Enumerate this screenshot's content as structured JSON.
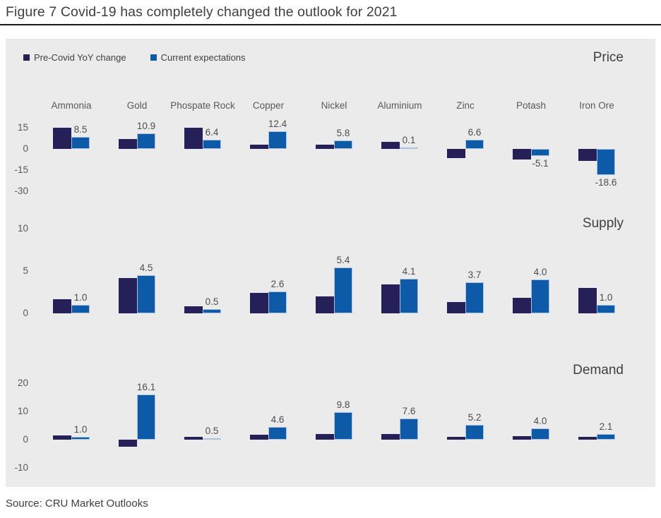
{
  "figure": {
    "title": "Figure 7 Covid-19 has completely changed the outlook for 2021",
    "source": "Source: CRU Market Outlooks"
  },
  "colors": {
    "pre_covid": "#252057",
    "current": "#0d5ba8",
    "current_border": "#a9c3df",
    "chart_background": "#ebebeb",
    "text_gray": "#595959"
  },
  "legend": {
    "items": [
      {
        "label": "Pre-Covid YoY change",
        "color": "#252057"
      },
      {
        "label": "Current expectations",
        "color": "#0d5ba8"
      }
    ]
  },
  "chart_data": {
    "type": "bar",
    "categories": [
      "Ammonia",
      "Gold",
      "Phospate Rock",
      "Copper",
      "Nickel",
      "Aluminium",
      "Zinc",
      "Potash",
      "Iron Ore"
    ],
    "legend_position": "top-left",
    "grid": false,
    "panels": [
      {
        "title": "Price",
        "yticks": [
          15,
          0,
          -15,
          -30
        ],
        "ylim": [
          -33,
          17
        ],
        "series": [
          {
            "name": "Pre-Covid YoY change",
            "values": [
              15,
              7,
              15,
              3,
              3,
              5,
              -6.5,
              -7.5,
              -8.5
            ]
          },
          {
            "name": "Current expectations",
            "values": [
              8.5,
              10.9,
              6.4,
              12.4,
              5.8,
              0.1,
              6.6,
              -5.1,
              -18.6
            ],
            "data_labels": [
              "8.5",
              "10.9",
              "6.4",
              "12.4",
              "5.8",
              "0.1",
              "6.6",
              "-5.1",
              "-18.6"
            ]
          }
        ]
      },
      {
        "title": "Supply",
        "yticks": [
          10,
          5,
          0
        ],
        "ylim": [
          0,
          11
        ],
        "series": [
          {
            "name": "Pre-Covid YoY change",
            "values": [
              1.7,
              4.2,
              0.8,
              2.4,
              2.0,
              3.4,
              1.3,
              1.8,
              3.0
            ]
          },
          {
            "name": "Current expectations",
            "values": [
              1.0,
              4.5,
              0.5,
              2.6,
              5.4,
              4.1,
              3.7,
              4.0,
              1.0
            ],
            "data_labels": [
              "1.0",
              "4.5",
              "0.5",
              "2.6",
              "5.4",
              "4.1",
              "3.7",
              "4.0",
              "1.0"
            ]
          }
        ]
      },
      {
        "title": "Demand",
        "yticks": [
          20,
          10,
          0,
          -10
        ],
        "ylim": [
          -12,
          22
        ],
        "series": [
          {
            "name": "Pre-Covid YoY change",
            "values": [
              1.5,
              -2.5,
              1.0,
              1.7,
              2.0,
              2.0,
              1.0,
              1.3,
              0.9
            ]
          },
          {
            "name": "Current expectations",
            "values": [
              1.0,
              16.1,
              0.5,
              4.6,
              9.8,
              7.6,
              5.2,
              4.0,
              2.1
            ],
            "data_labels": [
              "1.0",
              "16.1",
              "0.5",
              "4.6",
              "9.8",
              "7.6",
              "5.2",
              "4.0",
              "2.1"
            ]
          }
        ]
      }
    ]
  }
}
